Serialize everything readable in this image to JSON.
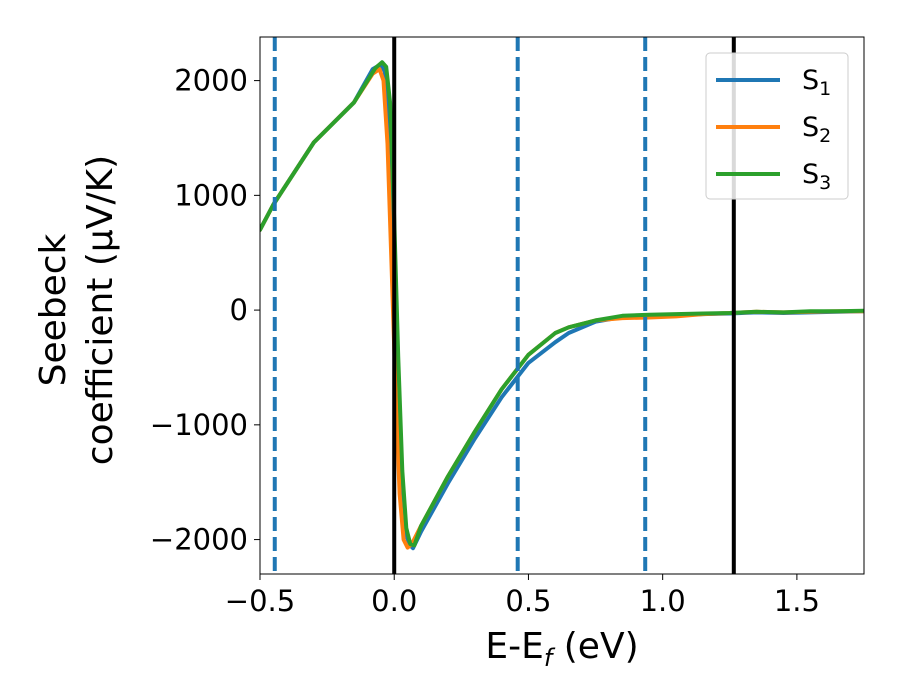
{
  "chart_data": {
    "type": "line",
    "title": "",
    "xlabel": "E-E",
    "xlabel_sub": "f",
    "xlabel_suffix": " (eV)",
    "ylabel_line1": "Seebeck",
    "ylabel_line2": "coefficient  (μV/K)",
    "xlim": [
      -0.5,
      1.75
    ],
    "ylim": [
      -2300,
      2380
    ],
    "xticks": [
      -0.5,
      0.0,
      0.5,
      1.0,
      1.5
    ],
    "xtick_labels": [
      "−0.5",
      "0.0",
      "0.5",
      "1.0",
      "1.5"
    ],
    "yticks": [
      -2000,
      -1000,
      0,
      1000,
      2000
    ],
    "ytick_labels": [
      "−2000",
      "−1000",
      "0",
      "1000",
      "2000"
    ],
    "grid": false,
    "legend_position": "top-right",
    "vlines_solid": [
      0.0,
      1.265
    ],
    "vlines_dashed": [
      -0.445,
      0.46,
      0.935
    ],
    "series": [
      {
        "name": "S",
        "name_sub": "1",
        "color": "#1f77b4",
        "x": [
          -0.5,
          -0.45,
          -0.3,
          -0.15,
          -0.08,
          -0.05,
          -0.035,
          -0.02,
          -0.005,
          0.01,
          0.025,
          0.04,
          0.055,
          0.07,
          0.1,
          0.2,
          0.3,
          0.4,
          0.5,
          0.6,
          0.65,
          0.75,
          0.85,
          0.95,
          1.05,
          1.15,
          1.25,
          1.35,
          1.45,
          1.55,
          1.65,
          1.75
        ],
        "y": [
          700,
          920,
          1460,
          1810,
          2100,
          2140,
          2080,
          1600,
          700,
          -400,
          -1300,
          -1900,
          -2040,
          -2075,
          -1930,
          -1510,
          -1120,
          -760,
          -460,
          -280,
          -200,
          -100,
          -60,
          -45,
          -45,
          -35,
          -30,
          -20,
          -25,
          -20,
          -15,
          -10
        ]
      },
      {
        "name": "S",
        "name_sub": "2",
        "color": "#ff7f0e",
        "x": [
          -0.5,
          -0.45,
          -0.3,
          -0.15,
          -0.08,
          -0.055,
          -0.04,
          -0.025,
          -0.01,
          0.005,
          0.02,
          0.035,
          0.05,
          0.065,
          0.1,
          0.2,
          0.3,
          0.4,
          0.5,
          0.6,
          0.65,
          0.75,
          0.85,
          0.95,
          1.05,
          1.15,
          1.25,
          1.35,
          1.45,
          1.55,
          1.65,
          1.75
        ],
        "y": [
          700,
          920,
          1460,
          1810,
          2060,
          2100,
          2000,
          1450,
          400,
          -700,
          -1600,
          -2000,
          -2070,
          -2040,
          -1880,
          -1450,
          -1060,
          -690,
          -390,
          -200,
          -150,
          -90,
          -70,
          -65,
          -55,
          -35,
          -25,
          -15,
          -20,
          -15,
          -10,
          -10
        ]
      },
      {
        "name": "S",
        "name_sub": "3",
        "color": "#2ca02c",
        "x": [
          -0.5,
          -0.45,
          -0.3,
          -0.15,
          -0.07,
          -0.045,
          -0.03,
          -0.015,
          0.0,
          0.015,
          0.03,
          0.045,
          0.06,
          0.075,
          0.1,
          0.2,
          0.3,
          0.4,
          0.5,
          0.6,
          0.65,
          0.75,
          0.85,
          0.95,
          1.05,
          1.15,
          1.25,
          1.35,
          1.45,
          1.55,
          1.65,
          1.75
        ],
        "y": [
          700,
          920,
          1460,
          1810,
          2110,
          2160,
          2120,
          1800,
          800,
          -400,
          -1400,
          -1900,
          -2040,
          -2050,
          -1880,
          -1450,
          -1060,
          -690,
          -390,
          -200,
          -150,
          -90,
          -50,
          -40,
          -35,
          -30,
          -25,
          -15,
          -20,
          -10,
          -10,
          -5
        ]
      }
    ]
  }
}
